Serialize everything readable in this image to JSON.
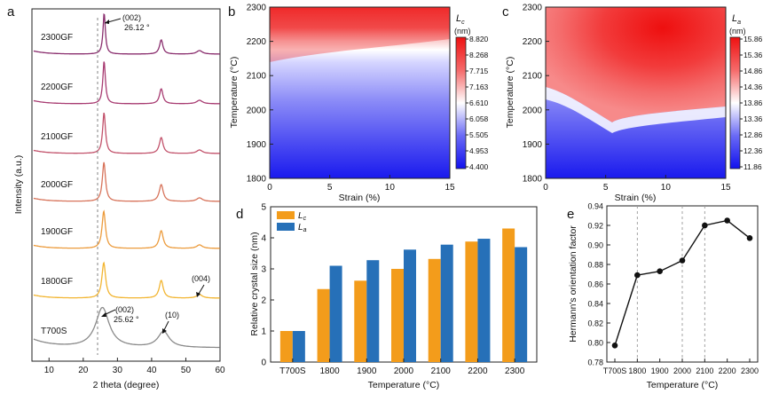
{
  "panels": {
    "a": "a",
    "b": "b",
    "c": "c",
    "d": "d",
    "e": "e"
  },
  "chart_data": [
    {
      "panel": "a",
      "type": "line",
      "title": "",
      "xlabel": "2 theta (degree)",
      "ylabel": "Intensity (a.u.)",
      "xlim": [
        5,
        60
      ],
      "xticks": [
        "10",
        "20",
        "30",
        "40",
        "50",
        "60"
      ],
      "series": [
        {
          "name": "T700S",
          "color": "#8a8a8a",
          "peaks": [
            {
              "x": 25.62,
              "h": 45,
              "w": 2.4
            },
            {
              "x": 43.5,
              "h": 18,
              "w": 2.0
            }
          ]
        },
        {
          "name": "1800GF",
          "color": "#f2b531",
          "peaks": [
            {
              "x": 26.0,
              "h": 40,
              "w": 0.65
            },
            {
              "x": 42.8,
              "h": 20,
              "w": 0.7
            },
            {
              "x": 54.0,
              "h": 4,
              "w": 1.0
            }
          ]
        },
        {
          "name": "1900GF",
          "color": "#ec9b3c",
          "peaks": [
            {
              "x": 26.0,
              "h": 42,
              "w": 0.6
            },
            {
              "x": 42.8,
              "h": 20,
              "w": 0.7
            },
            {
              "x": 54.0,
              "h": 4,
              "w": 1.0
            }
          ]
        },
        {
          "name": "2000GF",
          "color": "#d7735a",
          "peaks": [
            {
              "x": 26.05,
              "h": 44,
              "w": 0.55
            },
            {
              "x": 42.8,
              "h": 19,
              "w": 0.7
            },
            {
              "x": 54.0,
              "h": 4,
              "w": 1.0
            }
          ]
        },
        {
          "name": "2100GF",
          "color": "#c2526b",
          "peaks": [
            {
              "x": 26.08,
              "h": 46,
              "w": 0.5
            },
            {
              "x": 42.8,
              "h": 18,
              "w": 0.65
            },
            {
              "x": 54.0,
              "h": 4,
              "w": 1.0
            }
          ]
        },
        {
          "name": "2200GF",
          "color": "#a83c72",
          "peaks": [
            {
              "x": 26.1,
              "h": 48,
              "w": 0.45
            },
            {
              "x": 42.8,
              "h": 17,
              "w": 0.6
            },
            {
              "x": 54.0,
              "h": 4,
              "w": 1.0
            }
          ]
        },
        {
          "name": "2300GF",
          "color": "#8a2e6e",
          "peaks": [
            {
              "x": 26.12,
              "h": 46,
              "w": 0.42
            },
            {
              "x": 42.8,
              "h": 16,
              "w": 0.6
            },
            {
              "x": 54.0,
              "h": 4,
              "w": 1.0
            }
          ]
        }
      ],
      "annotations": [
        {
          "text": "(002)",
          "x": 26.12,
          "series": "2300GF"
        },
        {
          "text": "26.12 °",
          "x": 26.12,
          "series": "2300GF"
        },
        {
          "text": "(004)",
          "x": 54.0,
          "series": "1800GF"
        },
        {
          "text": "(002)",
          "x": 25.62,
          "series": "T700S"
        },
        {
          "text": "25.62 °",
          "x": 25.62,
          "series": "T700S"
        },
        {
          "text": "(10)",
          "x": 43.5,
          "series": "T700S"
        }
      ]
    },
    {
      "panel": "b",
      "type": "heatmap",
      "xlabel": "Strain (%)",
      "ylabel": "Temperature (°C)",
      "xlim": [
        0,
        15
      ],
      "ylim": [
        1800,
        2300
      ],
      "xticks": [
        "0",
        "5",
        "10",
        "15"
      ],
      "yticks": [
        "1800",
        "1900",
        "2000",
        "2100",
        "2200",
        "2300"
      ],
      "colorbar_title_main": "L",
      "colorbar_title_sub": "c",
      "colorbar_unit": "(nm)",
      "colorbar_range": [
        4.4,
        8.82
      ],
      "colorbar_ticks": [
        "8.820",
        "8.268",
        "7.715",
        "7.163",
        "6.610",
        "6.058",
        "5.505",
        "4.953",
        "4.400"
      ]
    },
    {
      "panel": "c",
      "type": "heatmap",
      "xlabel": "Strain (%)",
      "ylabel": "Temperature (°C)",
      "xlim": [
        0,
        15
      ],
      "ylim": [
        1800,
        2300
      ],
      "xticks": [
        "0",
        "5",
        "10",
        "15"
      ],
      "yticks": [
        "1800",
        "1900",
        "2000",
        "2100",
        "2200",
        "2300"
      ],
      "colorbar_title_main": "L",
      "colorbar_title_sub": "a",
      "colorbar_unit": "(nm)",
      "colorbar_range": [
        11.86,
        15.86
      ],
      "colorbar_ticks": [
        "15.86",
        "15.36",
        "14.86",
        "14.36",
        "13.86",
        "13.36",
        "12.86",
        "12.36",
        "11.86"
      ]
    },
    {
      "panel": "d",
      "type": "bar",
      "xlabel": "Temperature (°C)",
      "ylabel": "Relative crystal size (nm)",
      "ylim": [
        0,
        5
      ],
      "yticks": [
        "0",
        "1",
        "2",
        "3",
        "4",
        "5"
      ],
      "categories": [
        "T700S",
        "1800",
        "1900",
        "2000",
        "2100",
        "2200",
        "2300"
      ],
      "series": [
        {
          "name": "L",
          "sub": "c",
          "color": "#f39c1b",
          "values": [
            1.0,
            2.35,
            2.62,
            3.0,
            3.32,
            3.88,
            4.3
          ]
        },
        {
          "name": "L",
          "sub": "a",
          "color": "#2670b8",
          "values": [
            1.0,
            3.1,
            3.28,
            3.62,
            3.78,
            3.97,
            3.7
          ]
        }
      ],
      "legend": "top-left"
    },
    {
      "panel": "e",
      "type": "line",
      "xlabel": "Temperature (°C)",
      "ylabel": "Hermann's orientation factor",
      "ylim": [
        0.78,
        0.94
      ],
      "yticks": [
        "0.78",
        "0.80",
        "0.82",
        "0.84",
        "0.86",
        "0.88",
        "0.90",
        "0.92",
        "0.94"
      ],
      "categories": [
        "T700S",
        "1800",
        "1900",
        "2000",
        "2100",
        "2200",
        "2300"
      ],
      "values": [
        0.797,
        0.869,
        0.873,
        0.884,
        0.92,
        0.925,
        0.907
      ],
      "dashed_at": [
        "1800",
        "2000",
        "2100"
      ]
    }
  ]
}
